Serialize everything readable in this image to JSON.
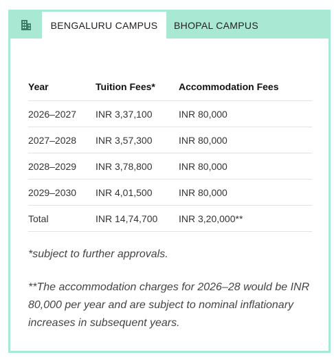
{
  "colors": {
    "accent": "#a9e9d3",
    "icon": "#3b7f67"
  },
  "tabs": {
    "icon_name": "building-icon",
    "active_label": "BENGALURU CAMPUS",
    "inactive_label": "BHOPAL CAMPUS"
  },
  "table": {
    "headers": {
      "year": "Year",
      "tuition": "Tuition Fees*",
      "accommodation": "Accommodation Fees"
    },
    "rows": [
      {
        "year": "2026–2027",
        "tuition": "INR 3,37,100",
        "accommodation": "INR 80,000"
      },
      {
        "year": "2027–2028",
        "tuition": "INR 3,57,300",
        "accommodation": "INR 80,000"
      },
      {
        "year": "2028–2029",
        "tuition": "INR 3,78,800",
        "accommodation": "INR 80,000"
      },
      {
        "year": "2029–2030",
        "tuition": "INR 4,01,500",
        "accommodation": "INR 80,000"
      },
      {
        "year": "Total",
        "tuition": "INR 14,74,700",
        "accommodation": "INR 3,20,000**"
      }
    ]
  },
  "notes": {
    "tuition_note": "*subject to further approvals.",
    "accommodation_note": "**The accommodation charges for 2026–28 would be INR 80,000 per year and are subject to nominal inflationary increases in subsequent years."
  }
}
